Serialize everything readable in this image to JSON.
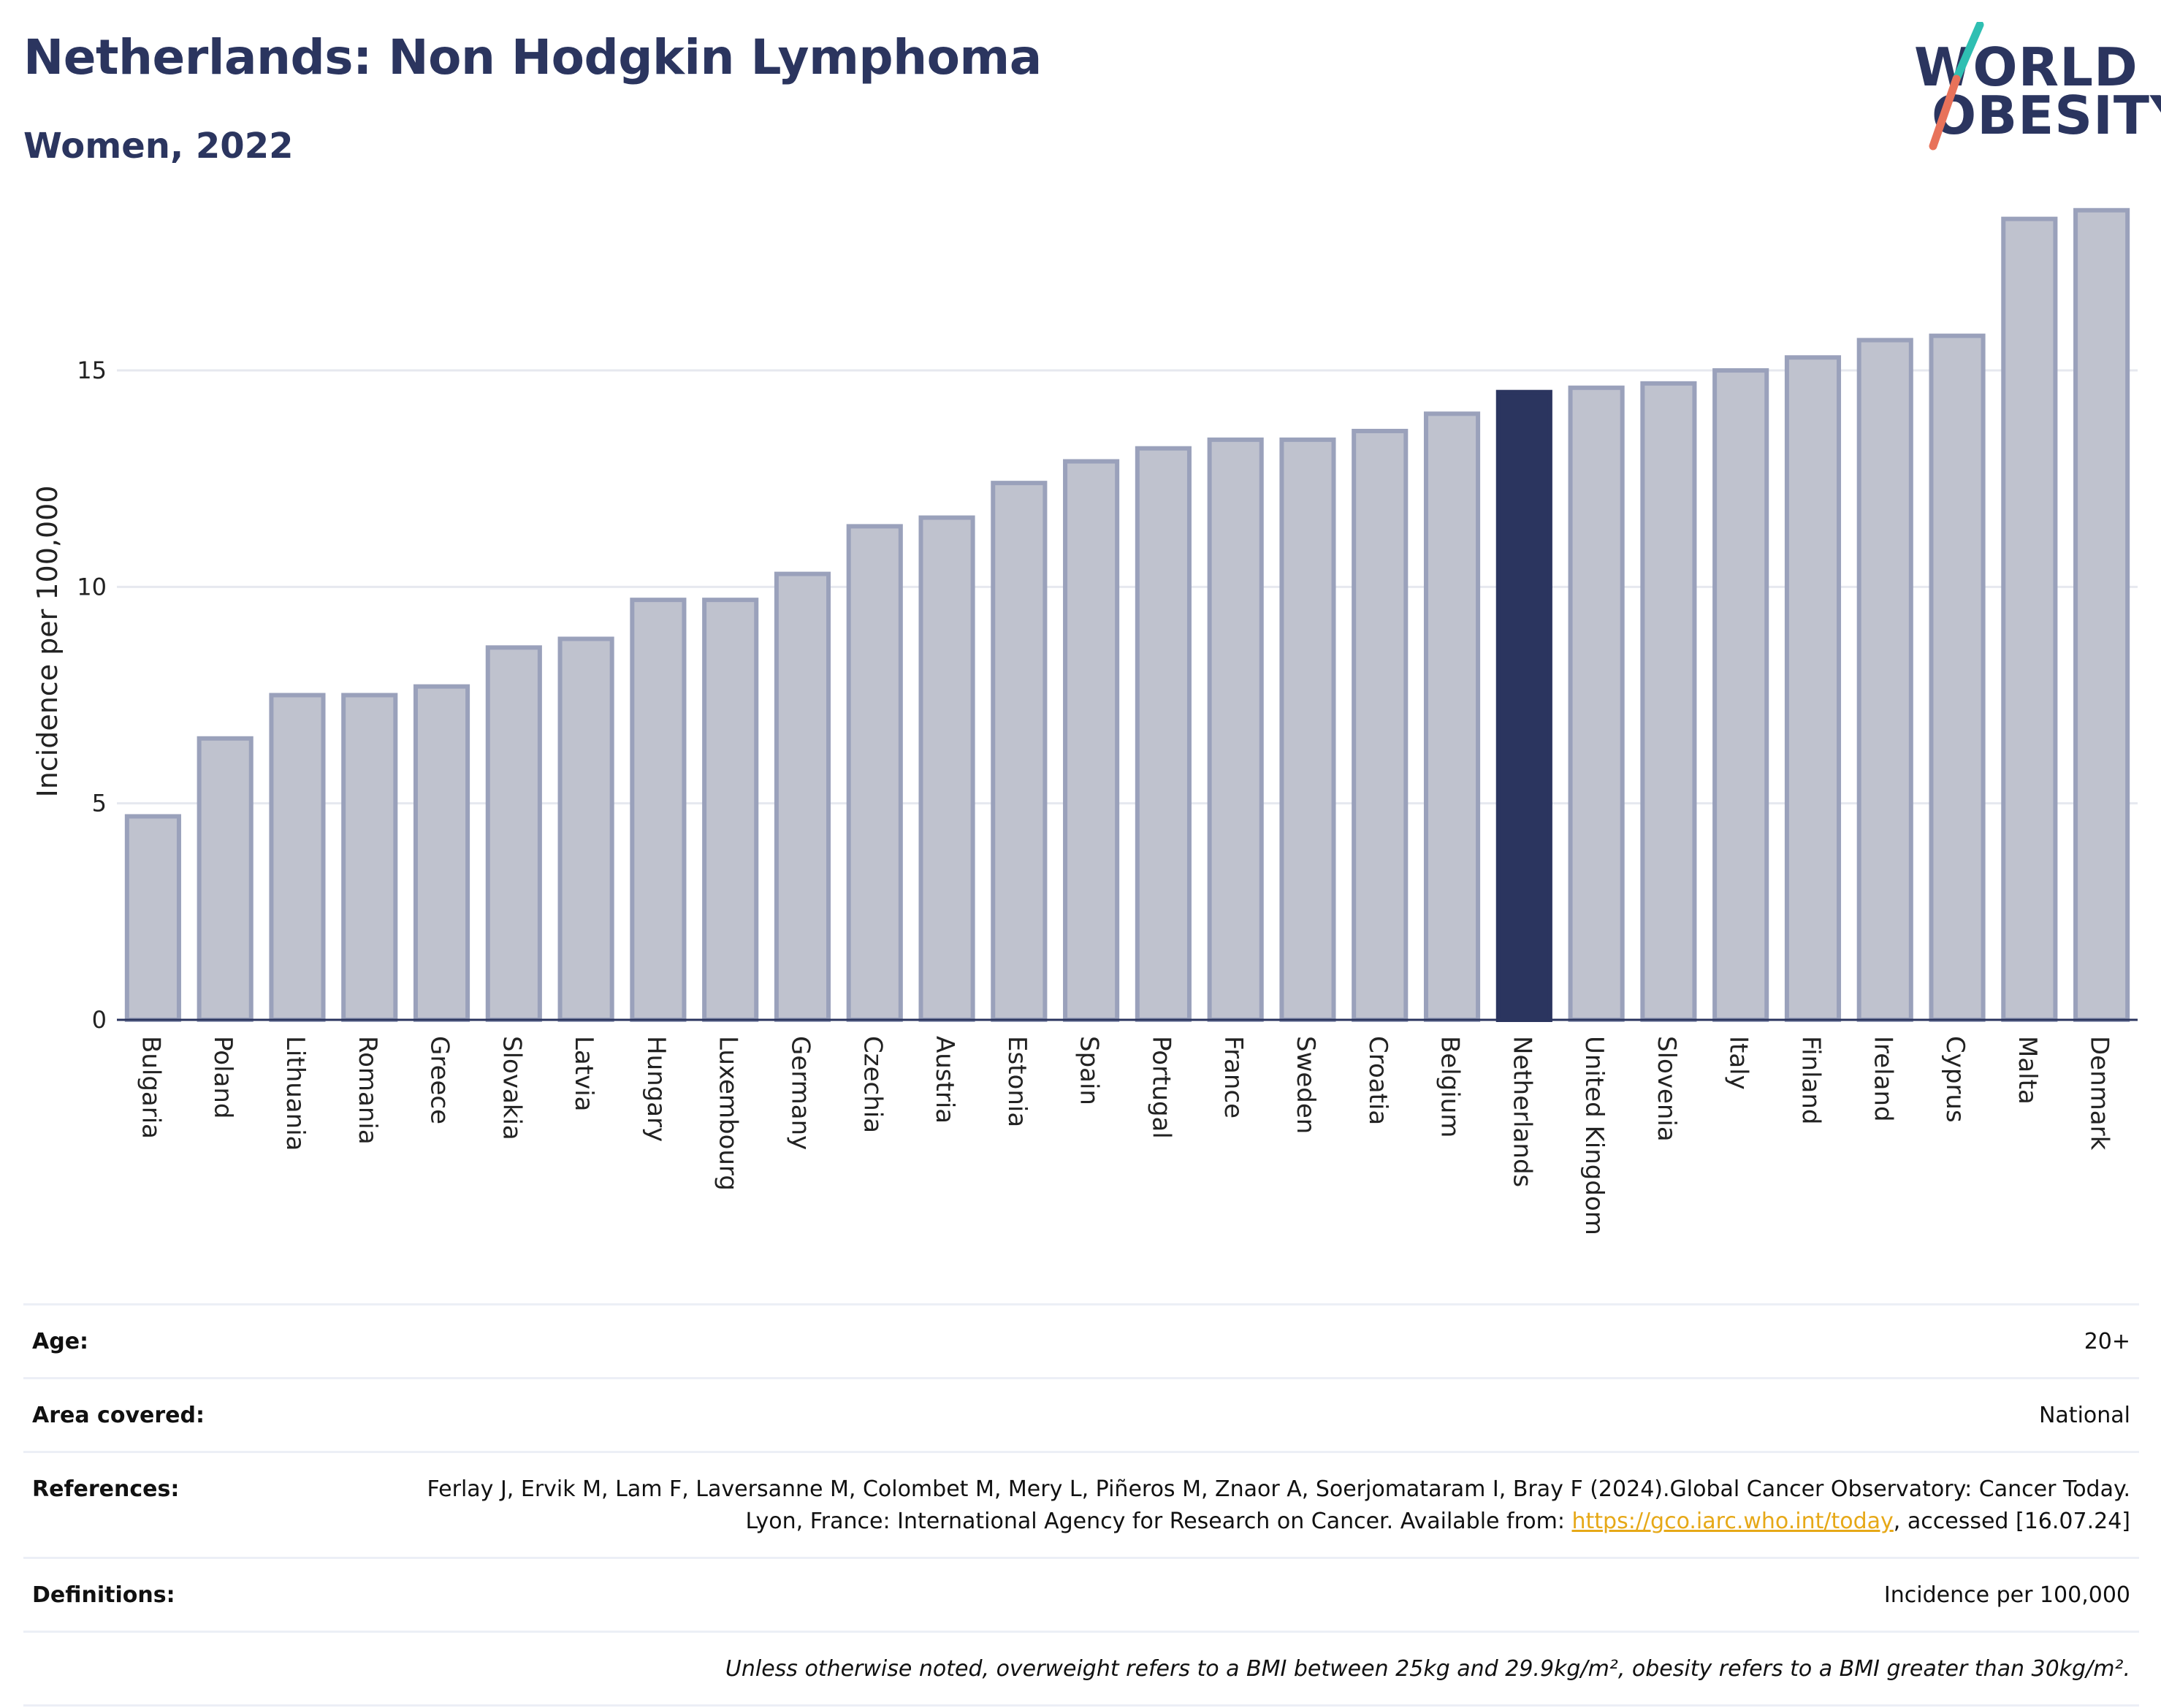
{
  "title": "Netherlands: Non Hodgkin Lymphoma",
  "subtitle": "Women, 2022",
  "logo": {
    "line1": "WORLD",
    "line2": "OBESITY",
    "colors": {
      "text": "#2b355f",
      "slash_top": "#2fbfb2",
      "slash_bottom": "#e8725a"
    }
  },
  "chart_data": {
    "type": "bar",
    "title": "Netherlands: Non Hodgkin Lymphoma",
    "subtitle": "Women, 2022",
    "xlabel": "",
    "ylabel": "Incidence per 100,000",
    "ylim": [
      0,
      19
    ],
    "yticks": [
      0,
      5,
      10,
      15
    ],
    "grid": true,
    "highlight": "Netherlands",
    "colors": {
      "bar": "#bfc2ce",
      "bar_edge": "#9aa1bb",
      "highlight": "#2b355f",
      "grid": "#e6e8ef",
      "axis": "#2b355f"
    },
    "categories": [
      "Bulgaria",
      "Poland",
      "Lithuania",
      "Romania",
      "Greece",
      "Slovakia",
      "Latvia",
      "Hungary",
      "Luxembourg",
      "Germany",
      "Czechia",
      "Austria",
      "Estonia",
      "Spain",
      "Portugal",
      "France",
      "Sweden",
      "Croatia",
      "Belgium",
      "Netherlands",
      "United Kingdom",
      "Slovenia",
      "Italy",
      "Finland",
      "Ireland",
      "Cyprus",
      "Malta",
      "Denmark"
    ],
    "values": [
      4.7,
      6.5,
      7.5,
      7.5,
      7.7,
      8.6,
      8.8,
      9.7,
      9.7,
      10.3,
      11.4,
      11.6,
      12.4,
      12.9,
      13.2,
      13.4,
      13.4,
      13.6,
      14.0,
      14.5,
      14.6,
      14.7,
      15.0,
      15.3,
      15.7,
      15.8,
      18.5,
      18.7
    ]
  },
  "meta": {
    "age": {
      "label": "Age:",
      "value": "20+"
    },
    "area": {
      "label": "Area covered:",
      "value": "National"
    },
    "references": {
      "label": "References:",
      "text_before": "Ferlay J, Ervik M, Lam F, Laversanne M, Colombet M, Mery L, Piñeros M, Znaor A, Soerjomataram I, Bray F (2024).Global Cancer Observatory: Cancer Today. Lyon, France: International Agency for Research on Cancer. Available from: ",
      "link": "https://gco.iarc.who.int/today",
      "text_after": ", accessed [16.07.24]"
    },
    "definitions": {
      "label": "Definitions:",
      "value": "Incidence per 100,000"
    },
    "note": "Unless otherwise noted, overweight refers to a BMI between 25kg and 29.9kg/m², obesity refers to a BMI greater than 30kg/m²."
  }
}
